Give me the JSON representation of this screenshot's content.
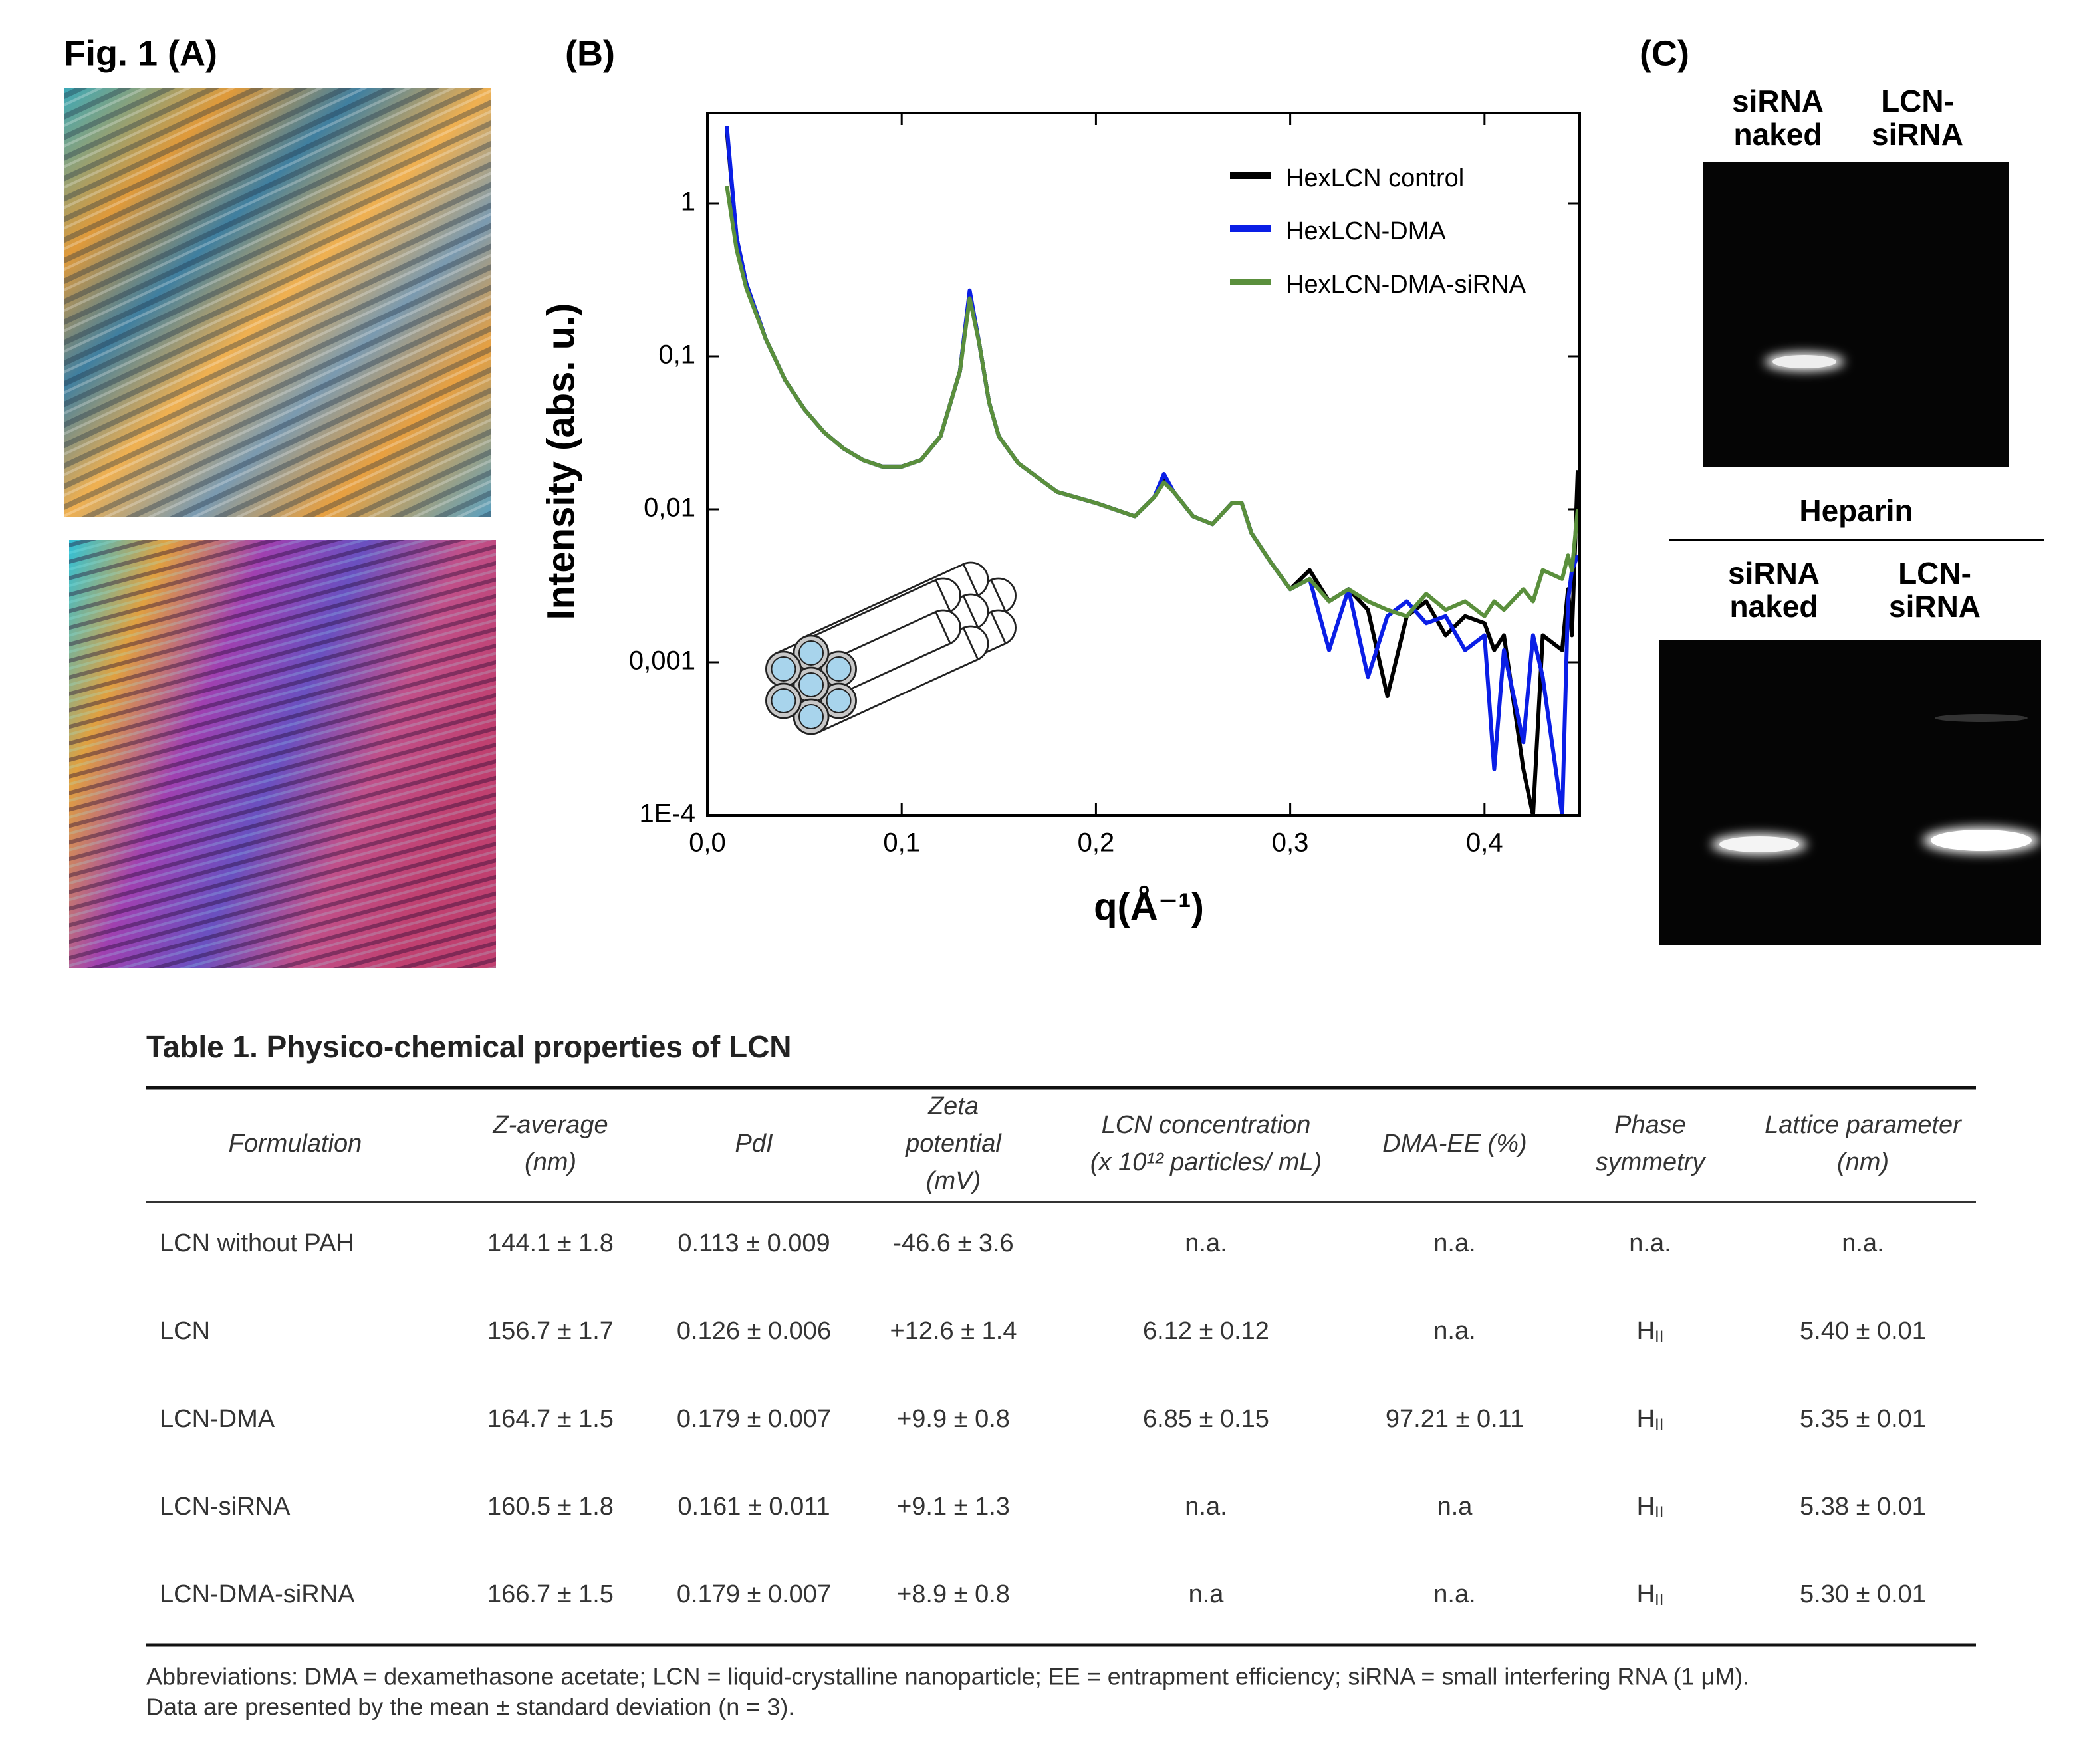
{
  "figure_label": "Fig. 1 (A)",
  "panel_b_label": "(B)",
  "panel_c_label": "(C)",
  "chart_data": {
    "type": "line",
    "ylabel": "Intensity (abs. u.)",
    "xlabel": "q(Å⁻¹)",
    "log_y": true,
    "legend": "upper right",
    "xlim": [
      0,
      0.449
    ],
    "ylim": [
      0.0001,
      3.9
    ],
    "xticks": [
      {
        "value": 0,
        "label": "0,0"
      },
      {
        "value": 0.1,
        "label": "0,1"
      },
      {
        "value": 0.2,
        "label": "0,2"
      },
      {
        "value": 0.3,
        "label": "0,3"
      },
      {
        "value": 0.4,
        "label": "0,4"
      }
    ],
    "yticks": [
      {
        "value": 0.0001,
        "label": "1E-4"
      },
      {
        "value": 0.001,
        "label": "0,001"
      },
      {
        "value": 0.01,
        "label": "0,01"
      },
      {
        "value": 0.1,
        "label": "0,1"
      },
      1
    ],
    "x": [
      0.01,
      0.015,
      0.02,
      0.03,
      0.04,
      0.05,
      0.06,
      0.07,
      0.08,
      0.09,
      0.1,
      0.11,
      0.12,
      0.13,
      0.135,
      0.14,
      0.145,
      0.15,
      0.16,
      0.18,
      0.2,
      0.22,
      0.23,
      0.235,
      0.24,
      0.25,
      0.26,
      0.27,
      0.275,
      0.28,
      0.29,
      0.3,
      0.31,
      0.32,
      0.33,
      0.34,
      0.35,
      0.36,
      0.37,
      0.38,
      0.39,
      0.4,
      0.405,
      0.41,
      0.42,
      0.425,
      0.43,
      0.44,
      0.443,
      0.445,
      0.448
    ],
    "series": [
      {
        "name": "HexLCN control",
        "color": "#000000",
        "values": [
          3.0,
          0.6,
          0.3,
          0.13,
          0.07,
          0.045,
          0.032,
          0.025,
          0.021,
          0.019,
          0.019,
          0.021,
          0.03,
          0.08,
          0.26,
          0.12,
          0.05,
          0.03,
          0.02,
          0.013,
          0.011,
          0.009,
          0.012,
          0.016,
          0.013,
          0.009,
          0.008,
          0.011,
          0.011,
          0.007,
          0.0045,
          0.003,
          0.004,
          0.0025,
          0.003,
          0.0022,
          0.0006,
          0.002,
          0.0025,
          0.0015,
          0.002,
          0.0018,
          0.0012,
          0.0015,
          0.0002,
          0.0001,
          0.0015,
          0.0012,
          0.003,
          0.0015,
          0.018
        ]
      },
      {
        "name": "HexLCN-DMA",
        "color": "#0a1ee6",
        "values": [
          3.2,
          0.6,
          0.3,
          0.13,
          0.07,
          0.045,
          0.032,
          0.025,
          0.021,
          0.019,
          0.019,
          0.021,
          0.03,
          0.08,
          0.27,
          0.12,
          0.05,
          0.03,
          0.02,
          0.013,
          0.011,
          0.009,
          0.012,
          0.017,
          0.013,
          0.009,
          0.008,
          0.011,
          0.011,
          0.007,
          0.0045,
          0.003,
          0.0035,
          0.0012,
          0.003,
          0.0008,
          0.002,
          0.0025,
          0.0018,
          0.002,
          0.0012,
          0.0015,
          0.0002,
          0.0012,
          0.0003,
          0.0015,
          0.0008,
          0.0001,
          0.0025,
          0.004,
          0.005
        ]
      },
      {
        "name": "HexLCN-DMA-siRNA",
        "color": "#5a8f3c",
        "values": [
          1.3,
          0.5,
          0.28,
          0.13,
          0.07,
          0.045,
          0.032,
          0.025,
          0.021,
          0.019,
          0.019,
          0.021,
          0.03,
          0.08,
          0.24,
          0.12,
          0.05,
          0.03,
          0.02,
          0.013,
          0.011,
          0.009,
          0.012,
          0.015,
          0.013,
          0.009,
          0.008,
          0.011,
          0.011,
          0.007,
          0.0045,
          0.003,
          0.0035,
          0.0025,
          0.003,
          0.0025,
          0.0022,
          0.002,
          0.0028,
          0.0022,
          0.0025,
          0.002,
          0.0025,
          0.0022,
          0.003,
          0.0025,
          0.004,
          0.0035,
          0.005,
          0.004,
          0.01
        ]
      }
    ]
  },
  "gels": {
    "top_lanes": [
      [
        "siRNA",
        "naked"
      ],
      [
        "LCN-",
        "siRNA"
      ]
    ],
    "heparin_label": "Heparin",
    "bottom_lanes": [
      [
        "siRNA",
        "naked"
      ],
      [
        "LCN-",
        "siRNA"
      ]
    ]
  },
  "table": {
    "title": "Table 1. Physico-chemical properties of LCN",
    "header": [
      [
        "Formulation"
      ],
      [
        "Z-average",
        "(nm)"
      ],
      [
        "PdI"
      ],
      [
        "Zeta",
        "potential",
        "(mV)"
      ],
      [
        "LCN concentration",
        "(x 10¹² particles/ mL)"
      ],
      [
        "DMA-EE (%)"
      ],
      [
        "Phase",
        "symmetry"
      ],
      [
        "Lattice parameter",
        "(nm)"
      ]
    ],
    "rows": [
      [
        "LCN without PAH",
        "144.1 ± 1.8",
        "0.113 ± 0.009",
        "-46.6 ± 3.6",
        "n.a.",
        "n.a.",
        "n.a.",
        "n.a."
      ],
      [
        "LCN",
        "156.7 ± 1.7",
        "0.126 ± 0.006",
        "+12.6 ± 1.4",
        "6.12 ± 0.12",
        "n.a.",
        {
          "main": "H",
          "sub": "II"
        },
        "5.40 ± 0.01"
      ],
      [
        "LCN-DMA",
        "164.7 ± 1.5",
        "0.179 ± 0.007",
        "+9.9 ± 0.8",
        "6.85 ± 0.15",
        "97.21 ± 0.11",
        {
          "main": "H",
          "sub": "II"
        },
        "5.35 ± 0.01"
      ],
      [
        "LCN-siRNA",
        "160.5 ± 1.8",
        "0.161 ± 0.011",
        "+9.1 ± 1.3",
        "n.a.",
        "n.a",
        {
          "main": "H",
          "sub": "II"
        },
        "5.38 ± 0.01"
      ],
      [
        "LCN-DMA-siRNA",
        "166.7 ± 1.5",
        "0.179 ± 0.007",
        "+8.9 ± 0.8",
        "n.a",
        "n.a.",
        {
          "main": "H",
          "sub": "II"
        },
        "5.30 ± 0.01"
      ]
    ],
    "footnote": [
      "Abbreviations: DMA = dexamethasone acetate; LCN = liquid-crystalline nanoparticle; EE = entrapment efficiency; siRNA = small interfering RNA (1 μM).",
      "Data are presented by the mean ± standard deviation (n = 3)."
    ]
  }
}
